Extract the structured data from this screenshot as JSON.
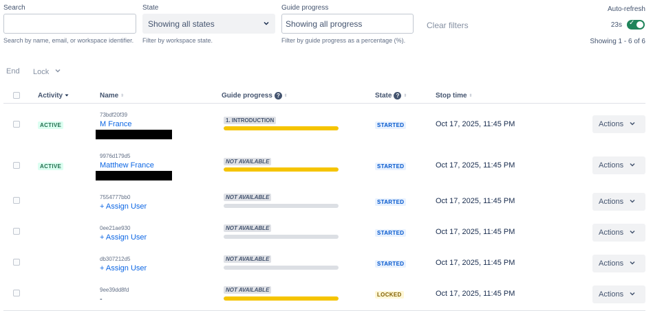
{
  "filters": {
    "search": {
      "label": "Search",
      "value": "",
      "placeholder": "",
      "help": "Search by name, email, or workspace identifier."
    },
    "state": {
      "label": "State",
      "selected": "Showing all states",
      "help": "Filter by workspace state."
    },
    "guide_progress": {
      "label": "Guide progress",
      "value": "Showing all progress",
      "help": "Filter by guide progress as a percentage (%)."
    },
    "clear_label": "Clear filters"
  },
  "refresh": {
    "label": "Auto-refresh",
    "countdown": "23s",
    "enabled": true,
    "showing": "Showing 1 - 6 of 6"
  },
  "bulk_actions": {
    "end": "End",
    "lock": "Lock"
  },
  "columns": {
    "activity": "Activity",
    "name": "Name",
    "guide_progress": "Guide progress",
    "state": "State",
    "stop_time": "Stop time"
  },
  "rows": [
    {
      "activity": "ACTIVE",
      "workspace_id": "73bdf20f39",
      "name": "M France",
      "guide_label": "1. INTRODUCTION",
      "guide_fill": 1.0,
      "state": "STARTED",
      "stop_time": "Oct 17, 2025, 11:45 PM",
      "action": "Actions"
    },
    {
      "activity": "ACTIVE",
      "workspace_id": "9976d179d5",
      "name": "Matthew France",
      "guide_label": "NOT AVAILABLE",
      "guide_fill": 1.0,
      "state": "STARTED",
      "stop_time": "Oct 17, 2025, 11:45 PM",
      "action": "Actions"
    },
    {
      "activity": "",
      "workspace_id": "7554777bb0",
      "name": "+ Assign User",
      "guide_label": "NOT AVAILABLE",
      "guide_fill": 0,
      "state": "STARTED",
      "stop_time": "Oct 17, 2025, 11:45 PM",
      "action": "Actions"
    },
    {
      "activity": "",
      "workspace_id": "0ee21ae930",
      "name": "+ Assign User",
      "guide_label": "NOT AVAILABLE",
      "guide_fill": 0,
      "state": "STARTED",
      "stop_time": "Oct 17, 2025, 11:45 PM",
      "action": "Actions"
    },
    {
      "activity": "",
      "workspace_id": "db307212d5",
      "name": "+ Assign User",
      "guide_label": "NOT AVAILABLE",
      "guide_fill": 0,
      "state": "STARTED",
      "stop_time": "Oct 17, 2025, 11:45 PM",
      "action": "Actions"
    },
    {
      "activity": "",
      "workspace_id": "9ee39dd8fd",
      "name": "-",
      "guide_label": "NOT AVAILABLE",
      "guide_fill": 1.0,
      "state": "LOCKED",
      "stop_time": "Oct 17, 2025, 11:45 PM",
      "action": "Actions"
    }
  ],
  "colors": {
    "accent": "#0c66e4",
    "progress": "#f5c400",
    "toggle_on": "#1f845a"
  }
}
